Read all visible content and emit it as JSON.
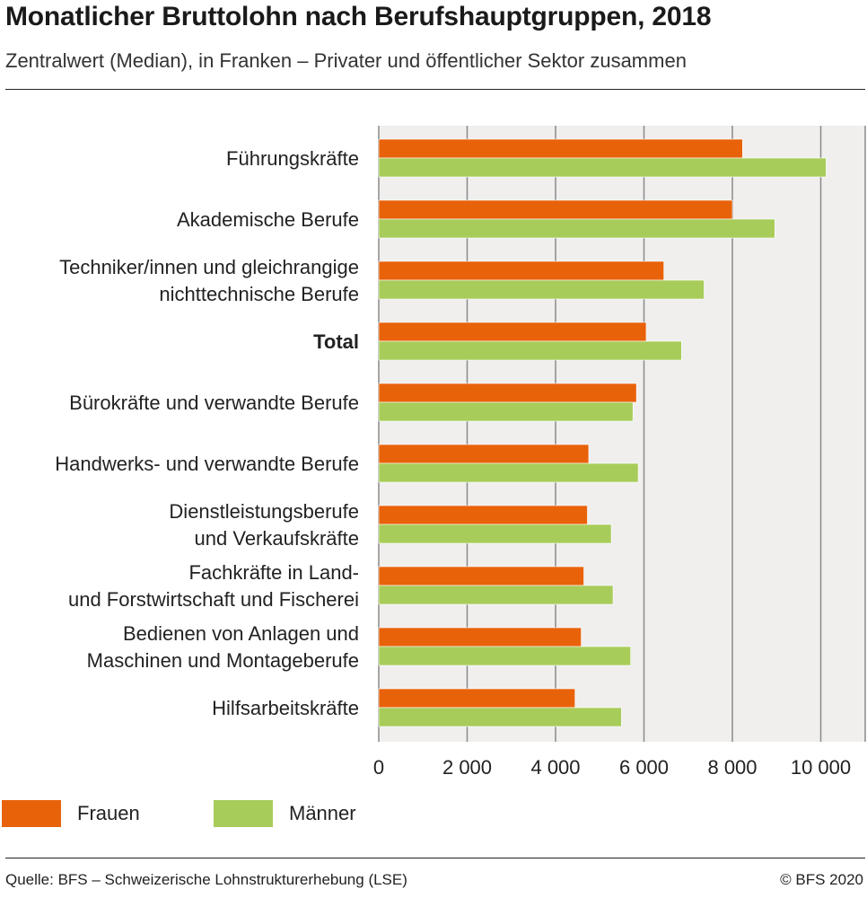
{
  "header": {
    "title": "Monatlicher Bruttolohn nach Berufshauptgruppen, 2018",
    "subtitle": "Zentralwert (Median), in Franken – Privater und öffentlicher Sektor zusammen"
  },
  "legend": {
    "frauen": "Frauen",
    "maenner": "Männer"
  },
  "footer": {
    "source": "Quelle: BFS – Schweizerische Lohnstrukturerhebung (LSE)",
    "copyright": "© BFS 2020"
  },
  "colors": {
    "frauen": "#e8620a",
    "maenner": "#a8cc5a",
    "plot_bg": "#f0efee",
    "grid": "#8a8a8a"
  },
  "chart_data": {
    "type": "bar",
    "orientation": "horizontal",
    "title": "Monatlicher Bruttolohn nach Berufshauptgruppen, 2018",
    "subtitle": "Zentralwert (Median), in Franken – Privater und öffentlicher Sektor zusammen",
    "categories": [
      [
        "Führungskräfte"
      ],
      [
        "Akademische Berufe"
      ],
      [
        "Techniker/innen und gleichrangige",
        "nichttechnische Berufe"
      ],
      [
        "Total"
      ],
      [
        "Bürokräfte und verwandte Berufe"
      ],
      [
        "Handwerks- und verwandte Berufe"
      ],
      [
        "Dienstleistungsberufe",
        "und Verkaufskräfte"
      ],
      [
        "Fachkräfte in Land-",
        "und Forstwirtschaft und Fischerei"
      ],
      [
        "Bedienen von Anlagen und",
        "Maschinen und Montageberufe"
      ],
      [
        "Hilfsarbeitskräfte"
      ]
    ],
    "bold_category_index": 3,
    "series": [
      {
        "name": "Frauen",
        "color": "#e8620a",
        "values": [
          8230,
          8000,
          6450,
          6050,
          5830,
          4750,
          4720,
          4640,
          4580,
          4440
        ]
      },
      {
        "name": "Männer",
        "color": "#a8cc5a",
        "values": [
          10120,
          8960,
          7360,
          6850,
          5750,
          5870,
          5260,
          5300,
          5700,
          5490
        ]
      }
    ],
    "xlim": [
      0,
      11000
    ],
    "ticks": [
      0,
      2000,
      4000,
      6000,
      8000,
      10000
    ],
    "tick_labels": [
      "0",
      "2 000",
      "4 000",
      "6 000",
      "8 000",
      "10 000"
    ],
    "grid": true,
    "legend_position": "bottom-left"
  }
}
